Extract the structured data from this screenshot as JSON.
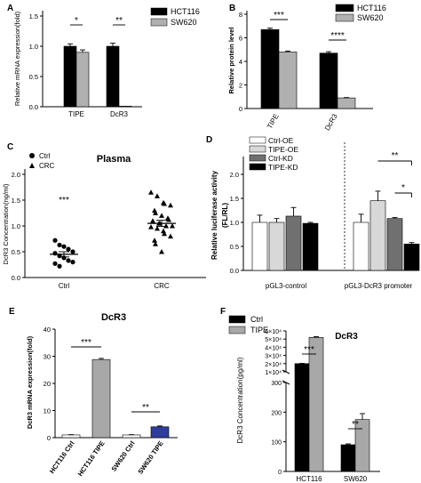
{
  "chart_data": [
    {
      "panel": "A",
      "type": "bar",
      "categories": [
        "TIPE",
        "DcR3"
      ],
      "ylabel": "Relative mRNA expression(fold)",
      "ylim": [
        0,
        1.5
      ],
      "yticks": [
        "0.0",
        "0.5",
        "1.0",
        "1.5"
      ],
      "series": [
        {
          "name": "HCT116",
          "color": "#000000",
          "values": [
            1.0,
            1.0
          ],
          "errors": [
            0.04,
            0.05
          ]
        },
        {
          "name": "SW620",
          "color": "#b0b0b0",
          "values": [
            0.9,
            0.01
          ],
          "errors": [
            0.04,
            0.0
          ]
        }
      ],
      "significance": [
        "*",
        "**"
      ]
    },
    {
      "panel": "B",
      "type": "bar",
      "categories": [
        "TIPE",
        "DcR3"
      ],
      "ylabel": "Relative protein level",
      "ylim": [
        0,
        8
      ],
      "yticks": [
        "0",
        "2",
        "4",
        "6",
        "8"
      ],
      "series": [
        {
          "name": "HCT116",
          "color": "#000000",
          "values": [
            6.7,
            4.7
          ],
          "errors": [
            0.12,
            0.12
          ]
        },
        {
          "name": "SW620",
          "color": "#b0b0b0",
          "values": [
            4.8,
            0.9
          ],
          "errors": [
            0.08,
            0.03
          ]
        }
      ],
      "significance": [
        "***",
        "****"
      ]
    },
    {
      "panel": "C",
      "type": "scatter",
      "title": "Plasma",
      "ylabel": "DcR3 Concentration(ng/ml)",
      "ylim": [
        0,
        2.0
      ],
      "yticks": [
        "0.0",
        "0.5",
        "1.0",
        "1.5",
        "2.0"
      ],
      "categories": [
        "Ctrl",
        "CRC"
      ],
      "legend": [
        {
          "name": "Ctrl",
          "marker": "circle"
        },
        {
          "name": "CRC",
          "marker": "triangle"
        }
      ],
      "groups": [
        {
          "name": "Ctrl",
          "mean": 0.45,
          "sem": 0.05,
          "points": [
            0.72,
            0.63,
            0.6,
            0.55,
            0.5,
            0.47,
            0.42,
            0.38,
            0.33,
            0.3,
            0.27,
            0.22
          ]
        },
        {
          "name": "CRC",
          "mean": 1.05,
          "sem": 0.06,
          "points": [
            1.65,
            1.58,
            1.45,
            1.43,
            1.4,
            1.3,
            1.25,
            1.2,
            1.15,
            1.12,
            1.1,
            1.05,
            1.05,
            1.0,
            1.0,
            0.98,
            0.95,
            0.9,
            0.85,
            0.8,
            0.72,
            0.65,
            0.5
          ]
        }
      ],
      "significance": "***"
    },
    {
      "panel": "D",
      "type": "bar",
      "ylabel": "Relative luciferase activity\n(FL/RL)",
      "ylim": [
        0,
        2.0
      ],
      "yticks": [
        "0.0",
        "0.5",
        "1.0",
        "1.5",
        "2.0"
      ],
      "groups": [
        "pGL3-control",
        "pGL3-DcR3 promoter"
      ],
      "series": [
        {
          "name": "Ctrl-OE",
          "color": "#ffffff",
          "values": [
            1.0,
            1.0
          ],
          "errors": [
            0.15,
            0.17
          ]
        },
        {
          "name": "TIPE-OE",
          "color": "#d8d8d8",
          "values": [
            1.0,
            1.45
          ],
          "errors": [
            0.08,
            0.2
          ]
        },
        {
          "name": "Ctrl-KD",
          "color": "#707070",
          "values": [
            1.13,
            1.08
          ],
          "errors": [
            0.18,
            0.02
          ]
        },
        {
          "name": "TIPE-KD",
          "color": "#000000",
          "values": [
            0.98,
            0.55
          ],
          "errors": [
            0.02,
            0.03
          ]
        }
      ],
      "significance": [
        "**",
        "*"
      ]
    },
    {
      "panel": "E",
      "type": "bar",
      "title": "DcR3",
      "ylabel": "DcR3 mRNA expression(fold)",
      "ylim": [
        0,
        40
      ],
      "yticks": [
        "0",
        "10",
        "20",
        "30",
        "40"
      ],
      "categories": [
        "HCT116 Ctrl",
        "HCT116 TIPE",
        "SW620 Ctrl",
        "SW620 TIPE"
      ],
      "values": [
        1.0,
        28.8,
        1.0,
        4.0
      ],
      "errors": [
        0.1,
        0.4,
        0.1,
        0.3
      ],
      "colors": [
        "#ffffff",
        "#a8a8a8",
        "#ffffff",
        "#2e3c9c"
      ],
      "significance": [
        "***",
        "**"
      ]
    },
    {
      "panel": "F",
      "type": "bar",
      "title": "DcR3",
      "ylabel": "DcR3 Concentration(pg/ml)",
      "yticks": [
        "0",
        "100",
        "200",
        "300",
        "1×10⁴",
        "2×10⁴",
        "3×10⁴",
        "4×10⁴",
        "5×10⁴",
        "6×10⁴"
      ],
      "categories": [
        "HCT116",
        "SW620"
      ],
      "series": [
        {
          "name": "Ctrl",
          "color": "#000000",
          "values": [
            20000,
            90
          ],
          "errors": [
            300,
            3
          ]
        },
        {
          "name": "TIPE",
          "color": "#a8a8a8",
          "values": [
            52000,
            175
          ],
          "errors": [
            1000,
            20
          ]
        }
      ],
      "significance": [
        "***",
        "**"
      ]
    }
  ]
}
